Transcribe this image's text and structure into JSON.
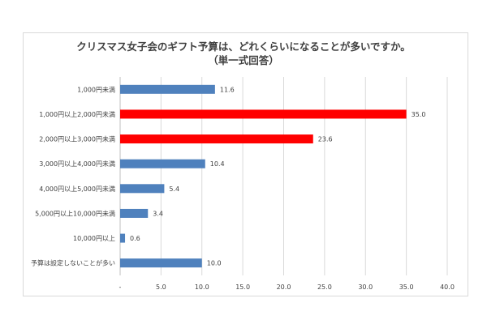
{
  "chart_data": {
    "type": "bar",
    "orientation": "horizontal",
    "title": "クリスマス女子会のギフト予算は、どれくらいになることが多いですか。",
    "subtitle": "（単一式回答）",
    "categories": [
      "1,000円未満",
      "1,000円以上2,000円未満",
      "2,000円以上3,000円未満",
      "3,000円以上4,000円未満",
      "4,000円以上5,000円未満",
      "5,000円以上10,000円未満",
      "10,000円以上",
      "予算は設定しないことが多い"
    ],
    "values": [
      11.6,
      35.0,
      23.6,
      10.4,
      5.4,
      3.4,
      0.6,
      10.0
    ],
    "value_labels": [
      "11.6",
      "35.0",
      "23.6",
      "10.4",
      "5.4",
      "3.4",
      "0.6",
      "10.0"
    ],
    "bar_colors": [
      "#4f81bd",
      "#ff0000",
      "#ff0000",
      "#4f81bd",
      "#4f81bd",
      "#4f81bd",
      "#4f81bd",
      "#4f81bd"
    ],
    "xlim": [
      0,
      40
    ],
    "xticks": [
      "-",
      "5.0",
      "10.0",
      "15.0",
      "20.0",
      "25.0",
      "30.0",
      "35.0",
      "40.0"
    ],
    "grid": "vertical",
    "legend": "none"
  }
}
